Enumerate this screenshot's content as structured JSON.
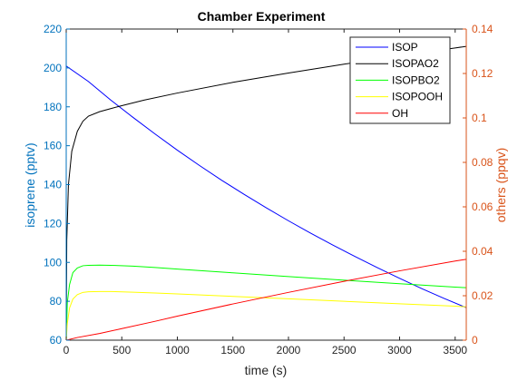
{
  "chart_data": {
    "type": "line",
    "title": "Chamber Experiment",
    "xlabel": "time (s)",
    "ylabel_left": "isoprene (pptv)",
    "ylabel_right": "others (ppqv)",
    "xlim": [
      0,
      3600
    ],
    "ylim_left": [
      60,
      220
    ],
    "ylim_right": [
      0,
      0.14
    ],
    "xticks": [
      0,
      500,
      1000,
      1500,
      2000,
      2500,
      3000,
      3500
    ],
    "yticks_left": [
      60,
      80,
      100,
      120,
      140,
      160,
      180,
      200,
      220
    ],
    "yticks_right": [
      0,
      0.02,
      0.04,
      0.06,
      0.08,
      0.1,
      0.12,
      0.14
    ],
    "grid": false,
    "legend_position": "top-right",
    "colors": {
      "left_axis": "#0072BD",
      "right_axis": "#D95319",
      "isop": "#0000FF",
      "isopao2": "#000000",
      "isopbo2": "#00FF00",
      "isopooh": "#FFFF00",
      "oh": "#FF0000"
    },
    "series": [
      {
        "name": "ISOP",
        "axis": "left",
        "color": "#0000FF",
        "x": [
          0,
          200,
          400,
          600,
          800,
          1000,
          1200,
          1400,
          1600,
          1800,
          2000,
          2200,
          2400,
          2600,
          2800,
          3000,
          3200,
          3400,
          3600
        ],
        "y": [
          201,
          193,
          183.5,
          174.6,
          166,
          157.7,
          149.8,
          142.2,
          135,
          128.1,
          121.4,
          115,
          108.9,
          103,
          97.3,
          91.8,
          86.5,
          81.5,
          76.7
        ]
      },
      {
        "name": "ISOPAO2",
        "axis": "right",
        "color": "#000000",
        "x": [
          0,
          5,
          20,
          50,
          100,
          150,
          200,
          300,
          400,
          500,
          700,
          1000,
          1500,
          2000,
          2500,
          3000,
          3500,
          3600
        ],
        "y": [
          0,
          0.045,
          0.07,
          0.085,
          0.094,
          0.0985,
          0.1008,
          0.1028,
          0.1042,
          0.1055,
          0.108,
          0.1112,
          0.116,
          0.1202,
          0.1242,
          0.128,
          0.1315,
          0.1322
        ]
      },
      {
        "name": "ISOPBO2",
        "axis": "right",
        "color": "#00FF00",
        "x": [
          0,
          10,
          30,
          60,
          100,
          150,
          200,
          300,
          400,
          600,
          800,
          1000,
          1500,
          2000,
          2500,
          3000,
          3500,
          3600
        ],
        "y": [
          0,
          0.017,
          0.025,
          0.0304,
          0.0325,
          0.0335,
          0.0337,
          0.0338,
          0.0337,
          0.0333,
          0.0327,
          0.032,
          0.0303,
          0.0286,
          0.027,
          0.0254,
          0.0239,
          0.0236
        ]
      },
      {
        "name": "ISOPOOH",
        "axis": "right",
        "color": "#FFFF00",
        "x": [
          0,
          10,
          30,
          60,
          100,
          150,
          200,
          300,
          400,
          600,
          800,
          1000,
          1500,
          2000,
          2500,
          3000,
          3500,
          3600
        ],
        "y": [
          0,
          0.0075,
          0.0145,
          0.0185,
          0.0205,
          0.0215,
          0.0218,
          0.0219,
          0.0219,
          0.0216,
          0.0212,
          0.0208,
          0.0197,
          0.0186,
          0.0175,
          0.0164,
          0.0153,
          0.015
        ]
      },
      {
        "name": "OH",
        "axis": "right",
        "color": "#FF0000",
        "x": [
          0,
          100,
          300,
          500,
          800,
          1000,
          1500,
          2000,
          2500,
          3000,
          3500,
          3600
        ],
        "y": [
          0,
          0.0012,
          0.003,
          0.0052,
          0.0085,
          0.0108,
          0.0163,
          0.0215,
          0.0265,
          0.0312,
          0.0356,
          0.0364
        ]
      }
    ]
  }
}
